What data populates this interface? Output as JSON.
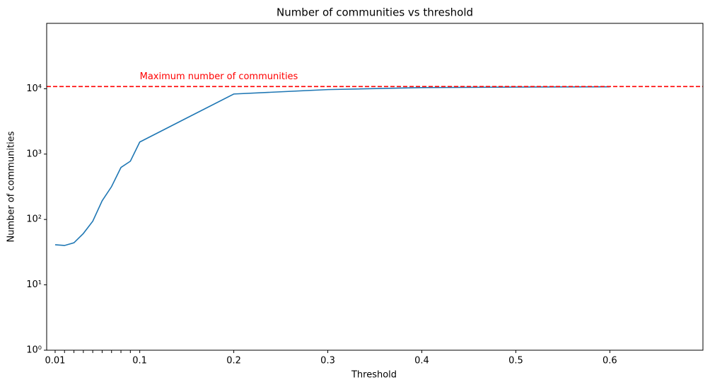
{
  "chart_data": {
    "type": "line",
    "title": "Number of communities vs threshold",
    "xlabel": "Threshold",
    "ylabel": "Number of communities",
    "x": [
      0.01,
      0.02,
      0.03,
      0.04,
      0.05,
      0.06,
      0.07,
      0.08,
      0.09,
      0.1,
      0.2,
      0.3,
      0.4,
      0.5,
      0.6
    ],
    "values": [
      41,
      40,
      44,
      61,
      94,
      193,
      318,
      624,
      778,
      1530,
      8300,
      9700,
      10400,
      10600,
      10700
    ],
    "color": "#1f77b4",
    "xlim": [
      0.001,
      0.699
    ],
    "xticks": [
      0.01,
      0.1,
      0.2,
      0.3,
      0.4,
      0.5,
      0.6
    ],
    "xminorticks": [
      0.02,
      0.03,
      0.04,
      0.05,
      0.06,
      0.07,
      0.08,
      0.09
    ],
    "ylim": [
      1,
      100000
    ],
    "yscale": "log",
    "yticks": [
      {
        "value": 1,
        "label": "10⁰"
      },
      {
        "value": 10,
        "label": "10¹"
      },
      {
        "value": 100,
        "label": "10²"
      },
      {
        "value": 1000,
        "label": "10³"
      },
      {
        "value": 10000,
        "label": "10⁴"
      }
    ],
    "hline": {
      "value": 10800,
      "color": "red",
      "label": "Maximum number of communities"
    }
  }
}
